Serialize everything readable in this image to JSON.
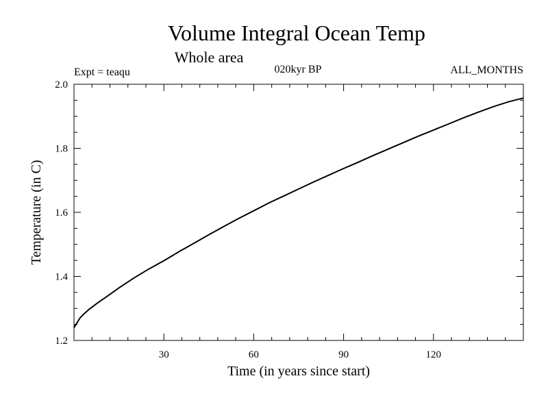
{
  "chart_data": {
    "type": "line",
    "title": "Volume Integral Ocean Temp",
    "subtitle": "Whole area",
    "experiment": "Expt = teaqu",
    "period": "020kyr BP",
    "months": "ALL_MONTHS",
    "xlabel": "Time (in years since start)",
    "ylabel": "Temperature (in C)",
    "xlim": [
      0,
      150
    ],
    "ylim": [
      1.2,
      2.0
    ],
    "x_major_ticks": [
      30,
      60,
      90,
      120
    ],
    "x_major_tick_labels": [
      "30",
      "60",
      "90",
      "120"
    ],
    "x_minor_step": 6,
    "y_major_ticks": [
      1.2,
      1.4,
      1.6,
      1.8,
      2.0
    ],
    "y_major_tick_labels": [
      "1.2",
      "1.4",
      "1.6",
      "1.8",
      "2.0"
    ],
    "y_minor_step": 0.05,
    "grid": false,
    "series": [
      {
        "name": "Volume Integral Ocean Temp",
        "x": [
          0,
          1,
          2,
          3,
          5,
          8,
          10,
          12,
          15,
          20,
          25,
          30,
          35,
          40,
          45,
          50,
          55,
          60,
          65,
          70,
          75,
          80,
          85,
          90,
          95,
          100,
          105,
          110,
          115,
          120,
          125,
          130,
          135,
          140,
          145,
          150
        ],
        "values": [
          1.24,
          1.255,
          1.27,
          1.28,
          1.297,
          1.318,
          1.331,
          1.344,
          1.364,
          1.395,
          1.423,
          1.449,
          1.477,
          1.503,
          1.53,
          1.556,
          1.581,
          1.605,
          1.629,
          1.651,
          1.673,
          1.695,
          1.716,
          1.737,
          1.757,
          1.778,
          1.798,
          1.818,
          1.838,
          1.857,
          1.876,
          1.895,
          1.913,
          1.93,
          1.945,
          1.957
        ]
      }
    ]
  }
}
